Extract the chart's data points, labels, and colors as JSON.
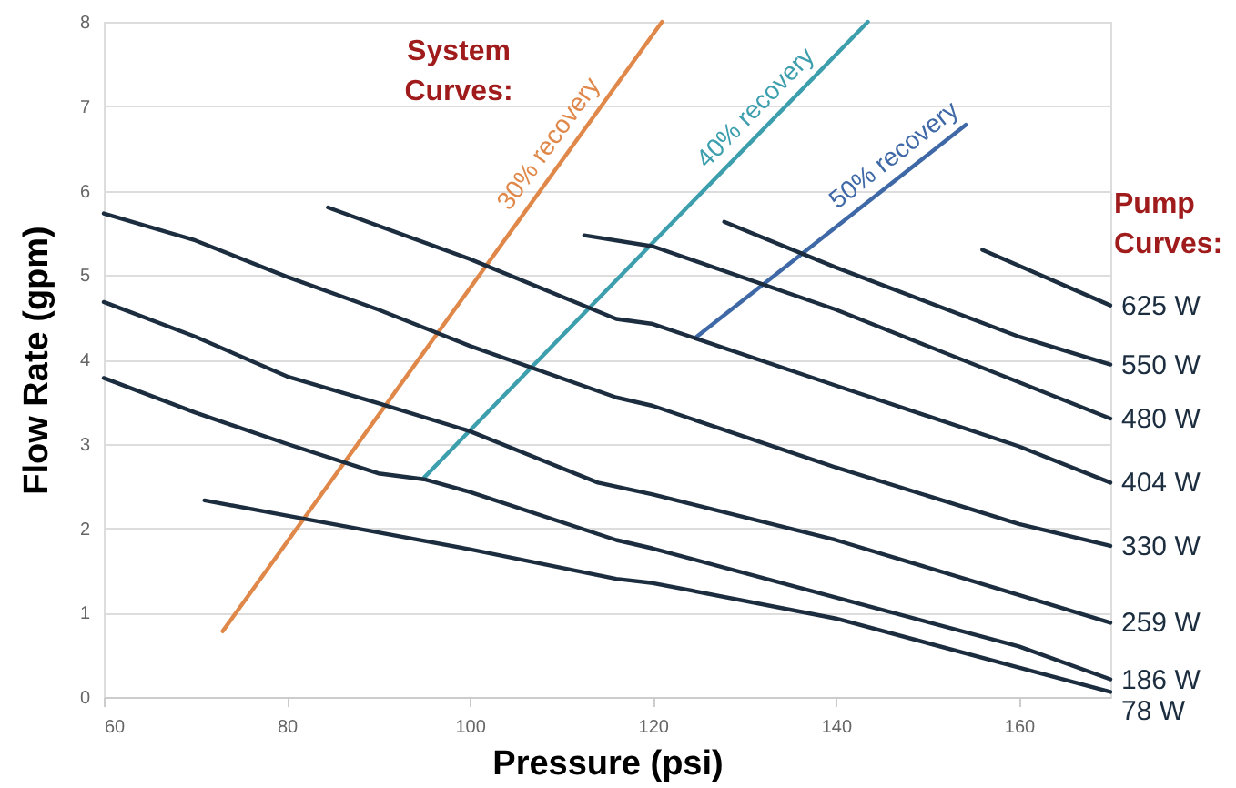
{
  "chart_data": {
    "type": "line",
    "xlabel": "Pressure (psi)",
    "ylabel": "Flow Rate (gpm)",
    "xlim": [
      60,
      170
    ],
    "xticks": [
      60,
      80,
      100,
      120,
      140,
      160
    ],
    "ylim": [
      0,
      8
    ],
    "yticks": [
      0,
      1,
      2,
      3,
      4,
      5,
      6,
      7,
      8
    ],
    "grid": "y",
    "annotations": [
      "System Curves:",
      "Pump Curves:"
    ],
    "series": [
      {
        "name": "30% recovery",
        "color": "#e0884a",
        "x": [
          73,
          121
        ],
        "values": [
          0.78,
          8
        ]
      },
      {
        "name": "40% recovery",
        "color": "#3d9fae",
        "x": [
          95,
          143.5
        ],
        "values": [
          2.6,
          8
        ]
      },
      {
        "name": "50% recovery",
        "color": "#3e68a6",
        "x": [
          124.8,
          154.2
        ],
        "values": [
          4.27,
          6.78
        ]
      },
      {
        "name": "625 W",
        "color": "#1b2d3f",
        "x": [
          156,
          170
        ],
        "values": [
          5.3,
          4.64
        ]
      },
      {
        "name": "550 W",
        "color": "#1b2d3f",
        "x": [
          127.8,
          140,
          160,
          170
        ],
        "values": [
          5.63,
          5.09,
          4.27,
          3.94
        ]
      },
      {
        "name": "480 W",
        "color": "#1b2d3f",
        "x": [
          112.5,
          120,
          140,
          160,
          170
        ],
        "values": [
          5.47,
          5.34,
          4.59,
          3.73,
          3.3
        ]
      },
      {
        "name": "404 W",
        "color": "#1b2d3f",
        "x": [
          84.5,
          100,
          116,
          120,
          140,
          160,
          170
        ],
        "values": [
          5.8,
          5.19,
          4.48,
          4.42,
          3.69,
          2.97,
          2.54
        ]
      },
      {
        "name": "330 W",
        "color": "#1b2d3f",
        "x": [
          60,
          70,
          80,
          90,
          100,
          116,
          120,
          140,
          160,
          170
        ],
        "values": [
          5.73,
          5.41,
          4.98,
          4.59,
          4.16,
          3.55,
          3.45,
          2.72,
          2.05,
          1.79
        ]
      },
      {
        "name": "259 W",
        "color": "#1b2d3f",
        "x": [
          60,
          70,
          80,
          90,
          100,
          114,
          120,
          140,
          160,
          170
        ],
        "values": [
          4.68,
          4.27,
          3.8,
          3.48,
          3.15,
          2.54,
          2.4,
          1.86,
          1.21,
          0.88
        ]
      },
      {
        "name": "186 W",
        "color": "#1b2d3f",
        "x": [
          60,
          70,
          80,
          90,
          95,
          100,
          116,
          120,
          140,
          160,
          170
        ],
        "values": [
          3.78,
          3.37,
          3.0,
          2.65,
          2.58,
          2.43,
          1.86,
          1.76,
          1.18,
          0.6,
          0.21
        ]
      },
      {
        "name": "78 W",
        "color": "#1b2d3f",
        "x": [
          71,
          80,
          90,
          100,
          116,
          120,
          140,
          160,
          170
        ],
        "values": [
          2.33,
          2.15,
          1.95,
          1.75,
          1.4,
          1.35,
          0.93,
          0.35,
          0.06
        ]
      }
    ]
  }
}
